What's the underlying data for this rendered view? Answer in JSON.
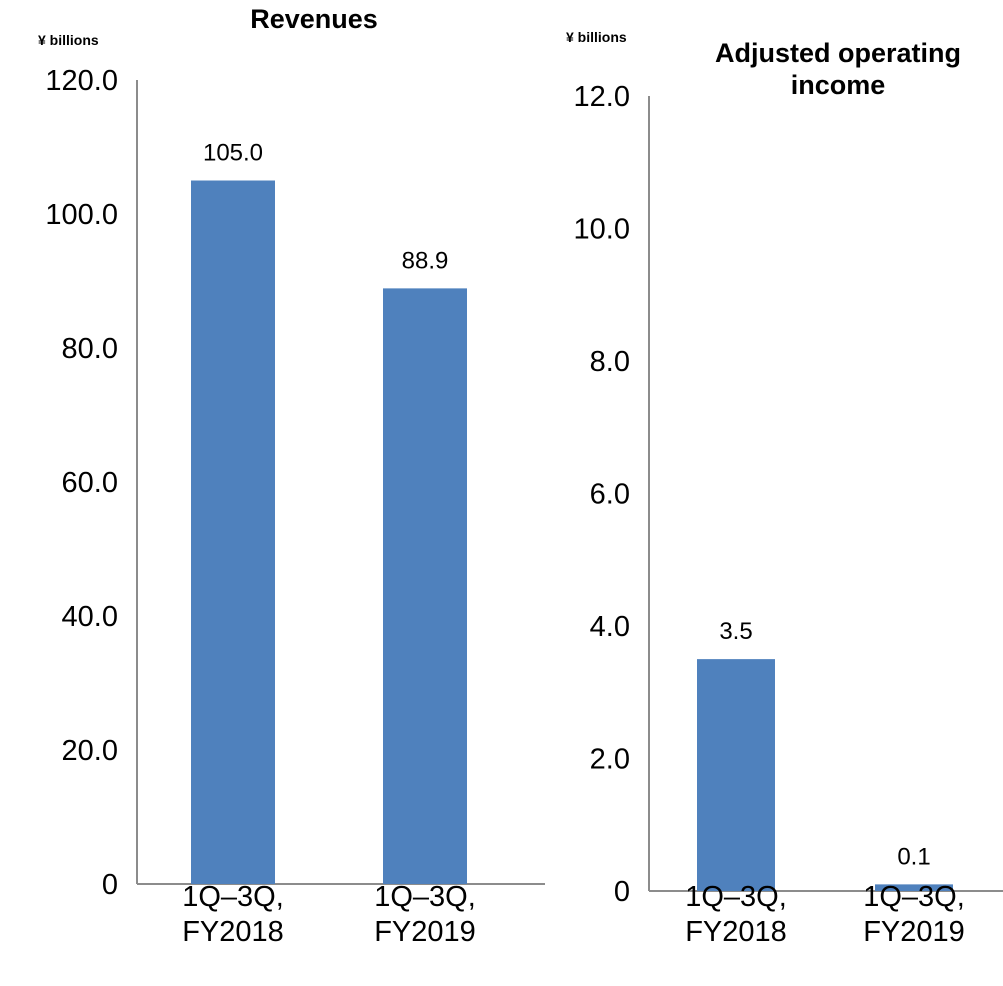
{
  "colors": {
    "bar": "#4F81BD",
    "axis": "#8c8c8c",
    "text": "#000000"
  },
  "chart_data": [
    {
      "type": "bar",
      "title": "Revenues",
      "unit_label": "¥ billions",
      "categories": [
        "1Q–3Q,\nFY2018",
        "1Q–3Q,\nFY2019"
      ],
      "values": [
        105.0,
        88.9
      ],
      "value_labels": [
        "105.0",
        "88.9"
      ],
      "ylim": [
        0,
        120
      ],
      "yticks": [
        0,
        20,
        40,
        60,
        80,
        100,
        120
      ],
      "ytick_labels": [
        "0",
        "20.0",
        "40.0",
        "60.0",
        "80.0",
        "100.0",
        "120.0"
      ],
      "grid": false,
      "legend": "none"
    },
    {
      "type": "bar",
      "title": "Adjusted operating\nincome",
      "unit_label": "¥ billions",
      "categories": [
        "1Q–3Q,\nFY2018",
        "1Q–3Q,\nFY2019"
      ],
      "values": [
        3.5,
        0.1
      ],
      "value_labels": [
        "3.5",
        "0.1"
      ],
      "ylim": [
        0,
        12
      ],
      "yticks": [
        0,
        2,
        4,
        6,
        8,
        10,
        12
      ],
      "ytick_labels": [
        "0",
        "2.0",
        "4.0",
        "6.0",
        "8.0",
        "10.0",
        "12.0"
      ],
      "grid": false,
      "legend": "none"
    }
  ]
}
